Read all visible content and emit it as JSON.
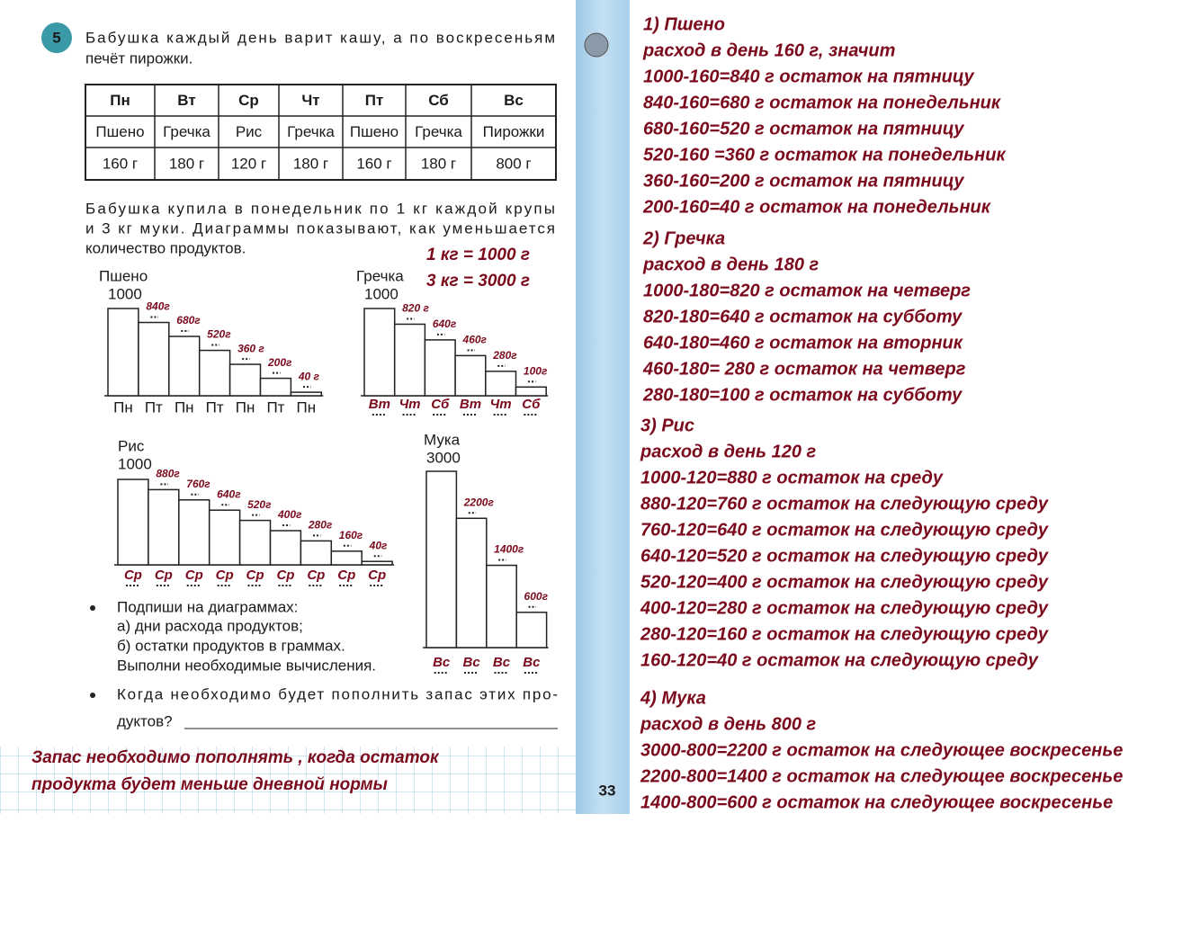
{
  "task": {
    "number": "5",
    "lines": [
      "Бабушка каждый день варит кашу, а по воскресеньям",
      "печёт пирожки."
    ]
  },
  "table": {
    "rows": [
      [
        "Пн",
        "Вт",
        "Ср",
        "Чт",
        "Пт",
        "Сб",
        "Вс"
      ],
      [
        "Пшено",
        "Гречка",
        "Рис",
        "Гречка",
        "Пшено",
        "Гречка",
        "Пирожки"
      ],
      [
        "160 г",
        "180 г",
        "120 г",
        "180 г",
        "160 г",
        "180 г",
        "800 г"
      ]
    ]
  },
  "paragraph": [
    "Бабушка купила в понедельник по 1 кг каждой крупы",
    "и 3 кг муки. Диаграммы показывают, как уменьшается",
    "количество продуктов."
  ],
  "conversions": [
    "1 кг = 1000 г",
    "3 кг = 3000 г"
  ],
  "charts": [
    {
      "type": "bar",
      "title": "Пшено",
      "values": [
        1000,
        840,
        680,
        520,
        360,
        200,
        40
      ],
      "value_labels": [
        "1000",
        "840г",
        "680г",
        "520г",
        "360 г",
        "200г",
        "40 г"
      ],
      "categories": [
        "Пн",
        "Пт",
        "Пн",
        "Пт",
        "Пн",
        "Пт",
        "Пн"
      ],
      "category_color": "#1a1a1a"
    },
    {
      "type": "bar",
      "title": "Гречка",
      "values": [
        1000,
        820,
        640,
        460,
        280,
        100
      ],
      "value_labels": [
        "1000",
        "820 г",
        "640г",
        "460г",
        "280г",
        "100г"
      ],
      "categories": [
        "Вт",
        "Чт",
        "Сб",
        "Вт",
        "Чт",
        "Сб"
      ],
      "category_color": "#7a0a1c"
    },
    {
      "type": "bar",
      "title": "Рис",
      "values": [
        1000,
        880,
        760,
        640,
        520,
        400,
        280,
        160,
        40
      ],
      "value_labels": [
        "1000",
        "880г",
        "760г",
        "640г",
        "520г",
        "400г",
        "280г",
        "160г",
        "40г"
      ],
      "categories": [
        "Ср",
        "Ср",
        "Ср",
        "Ср",
        "Ср",
        "Ср",
        "Ср",
        "Ср",
        "Ср"
      ],
      "category_color": "#7a0a1c"
    },
    {
      "type": "bar",
      "title": "Мука",
      "values": [
        3000,
        2200,
        1400,
        600
      ],
      "value_labels": [
        "3000",
        "2200г",
        "1400г",
        "600г"
      ],
      "categories": [
        "Вс",
        "Вс",
        "Вс",
        "Вс"
      ],
      "category_color": "#7a0a1c"
    }
  ],
  "instructions": {
    "bullet1": [
      "Подпиши на диаграммах:",
      "а) дни расхода продуктов;",
      "б) остатки продуктов в граммах.",
      "Выполни необходимые вычисления."
    ],
    "bullet2": [
      "Когда необходимо будет пополнить запас этих про-",
      "дуктов?"
    ]
  },
  "answer": [
    "Запас необходимо пополнять , когда остаток",
    "продукта будет меньше дневной нормы"
  ],
  "page_number": "33",
  "solution": [
    {
      "lines": [
        "1) Пшено",
        "расход в день 160 г, значит",
        "1000-160=840 г остаток на пятницу",
        "840-160=680 г остаток на понедельник",
        "680-160=520 г остаток на пятницу",
        "520-160 =360 г остаток на понедельник",
        "360-160=200 г остаток на пятницу",
        "200-160=40 г остаток на понедельник"
      ]
    },
    {
      "lines": [
        "2) Гречка",
        "расход в день 180 г",
        "1000-180=820 г остаток на четверг",
        "820-180=640 г остаток на субботу",
        "640-180=460 г остаток на вторник",
        "460-180= 280 г остаток на четверг",
        "280-180=100 г остаток на субботу"
      ]
    },
    {
      "lines": [
        "3) Рис",
        "расход в день 120 г",
        "1000-120=880 г остаток на среду",
        "880-120=760 г остаток на следующую среду",
        "760-120=640 г остаток на следующую среду",
        "640-120=520 г остаток на следующую среду",
        "520-120=400 г остаток на следующую среду",
        "400-120=280 г остаток на следующую среду",
        "280-120=160 г остаток на следующую среду",
        "160-120=40 г остаток на следующую среду"
      ]
    },
    {
      "lines": [
        "4) Мука",
        "расход в день 800 г",
        "3000-800=2200 г остаток на следующее воскресенье",
        "2200-800=1400 г остаток на следующее воскресенье",
        "1400-800=600 г остаток на следующее воскресенье"
      ]
    }
  ]
}
